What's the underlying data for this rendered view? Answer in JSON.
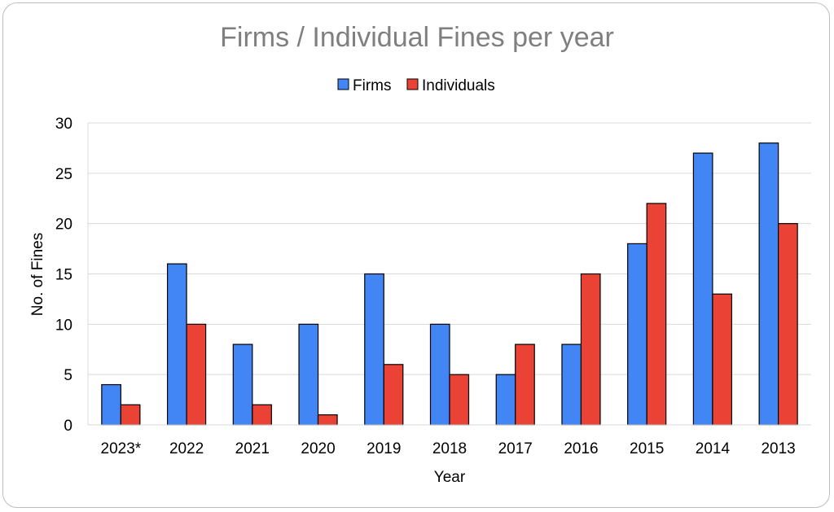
{
  "chart_data": {
    "type": "bar",
    "title": "Firms / Individual Fines per year",
    "xlabel": "Year",
    "ylabel": "No. of Fines",
    "ylim": [
      0,
      30
    ],
    "yticks": [
      0,
      5,
      10,
      15,
      20,
      25,
      30
    ],
    "grid": true,
    "legend_position": "top",
    "categories": [
      "2023*",
      "2022",
      "2021",
      "2020",
      "2019",
      "2018",
      "2017",
      "2016",
      "2015",
      "2014",
      "2013"
    ],
    "series": [
      {
        "name": "Firms",
        "color": "#4285f4",
        "values": [
          4,
          16,
          8,
          10,
          15,
          10,
          5,
          8,
          18,
          27,
          28
        ]
      },
      {
        "name": "Individuals",
        "color": "#ea4335",
        "values": [
          2,
          10,
          2,
          1,
          6,
          5,
          8,
          15,
          22,
          13,
          20
        ]
      }
    ]
  }
}
